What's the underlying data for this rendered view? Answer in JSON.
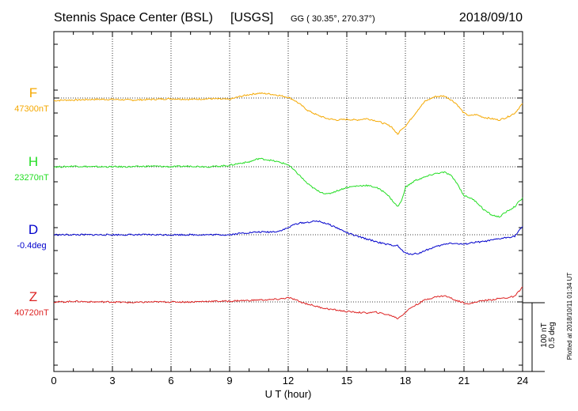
{
  "header": {
    "station": "Stennis Space Center (BSL)",
    "agency": "[USGS]",
    "coords": "GG ( 30.35°, 270.37°)",
    "date": "2018/09/10"
  },
  "footer": {
    "plotted": "Plotted at 2018/10/11 01:34 UT"
  },
  "scale_bar": {
    "label_nt": "100 nT",
    "label_deg": "0.5 deg"
  },
  "chart_data": {
    "type": "line",
    "title": "Stennis Space Center (BSL)  [USGS]",
    "xlabel": "U T (hour)",
    "xlim": [
      0,
      24
    ],
    "x_ticks": [
      0,
      3,
      6,
      9,
      12,
      15,
      18,
      21,
      24
    ],
    "x_tick_labels": [
      "0",
      "3",
      "6",
      "9",
      "12",
      "15",
      "18",
      "21",
      "24"
    ],
    "grid": true,
    "y_units_per_scale_bar": "100 nT / 0.5 deg",
    "series": [
      {
        "name": "F",
        "baseline_label": "47300nT",
        "color": "#f5a800",
        "x": [
          0,
          0.5,
          1,
          2,
          3,
          4,
          5,
          6,
          7,
          8,
          9,
          9.5,
          10,
          10.5,
          11,
          11.5,
          12,
          12.3,
          12.6,
          13,
          13.5,
          14,
          14.5,
          15,
          15.5,
          16,
          16.5,
          17,
          17.3,
          17.6,
          17.8,
          18,
          18.3,
          18.7,
          19,
          19.5,
          20,
          20.3,
          20.6,
          21,
          21.3,
          21.6,
          22,
          22.4,
          22.8,
          23.2,
          23.6,
          24
        ],
        "y": [
          -4,
          -3,
          -3,
          -2,
          -2,
          -3,
          -2,
          -1,
          -2,
          -1,
          -2,
          2,
          5,
          7,
          6,
          4,
          1,
          -3,
          -9,
          -18,
          -25,
          -30,
          -32,
          -31,
          -32,
          -30,
          -33,
          -38,
          -42,
          -53,
          -45,
          -41,
          -30,
          -15,
          -5,
          2,
          3,
          -2,
          -8,
          -22,
          -26,
          -24,
          -28,
          -30,
          -32,
          -28,
          -22,
          -8
        ]
      },
      {
        "name": "H",
        "baseline_label": "23270nT",
        "color": "#22dd22",
        "x": [
          0,
          0.5,
          1,
          2,
          3,
          4,
          5,
          6,
          7,
          8,
          9,
          9.5,
          10,
          10.5,
          11,
          11.5,
          12,
          12.3,
          12.6,
          13,
          13.5,
          14,
          14.5,
          15,
          15.5,
          16,
          16.5,
          17,
          17.3,
          17.6,
          17.8,
          18,
          18.5,
          19,
          19.5,
          20,
          20.3,
          20.6,
          21,
          21.3,
          21.6,
          22,
          22.4,
          22.8,
          23.2,
          23.6,
          24
        ],
        "y": [
          0,
          0,
          1,
          0,
          0,
          0,
          1,
          0,
          1,
          0,
          2,
          5,
          7,
          12,
          10,
          7,
          3,
          -5,
          -13,
          -25,
          -35,
          -40,
          -35,
          -30,
          -28,
          -27,
          -30,
          -38,
          -48,
          -58,
          -50,
          -30,
          -20,
          -15,
          -10,
          -8,
          -12,
          -22,
          -42,
          -45,
          -50,
          -62,
          -70,
          -73,
          -65,
          -58,
          -45
        ]
      },
      {
        "name": "D",
        "baseline_label": "-0.4deg",
        "color": "#0000cc",
        "x": [
          0,
          0.5,
          1,
          2,
          3,
          4,
          5,
          6,
          7,
          8,
          9,
          9.5,
          10,
          10.5,
          11,
          11.5,
          12,
          12.3,
          12.6,
          13,
          13.5,
          14,
          14.5,
          15,
          15.5,
          16,
          16.5,
          17,
          17.3,
          17.6,
          17.8,
          18,
          18.3,
          18.7,
          19,
          19.5,
          20,
          20.3,
          20.6,
          21,
          21.3,
          21.6,
          22,
          22.4,
          22.8,
          23.2,
          23.6,
          24
        ],
        "y": [
          0,
          0,
          0,
          0,
          0,
          0,
          0,
          0,
          0,
          0,
          0,
          2,
          3,
          4,
          4,
          5,
          10,
          15,
          17,
          18,
          20,
          16,
          10,
          3,
          -2,
          -6,
          -10,
          -14,
          -15,
          -16,
          -22,
          -27,
          -28,
          -27,
          -23,
          -18,
          -14,
          -12,
          -13,
          -14,
          -12,
          -11,
          -10,
          -8,
          -6,
          -4,
          -2,
          12
        ]
      },
      {
        "name": "Z",
        "baseline_label": "40720nT",
        "color": "#dd2222",
        "x": [
          0,
          0.5,
          1,
          2,
          3,
          4,
          5,
          6,
          7,
          8,
          9,
          9.5,
          10,
          10.5,
          11,
          11.5,
          12,
          12.3,
          12.6,
          13,
          13.5,
          14,
          14.5,
          15,
          15.5,
          16,
          16.5,
          17,
          17.3,
          17.6,
          17.8,
          18,
          18.3,
          18.7,
          19,
          19.5,
          20,
          20.3,
          20.6,
          21,
          21.3,
          21.6,
          22,
          22.4,
          22.8,
          23.2,
          23.6,
          24
        ],
        "y": [
          0,
          0,
          1,
          0,
          0,
          -1,
          0,
          0,
          0,
          1,
          1,
          2,
          2,
          3,
          3,
          4,
          6,
          4,
          0,
          -3,
          -7,
          -10,
          -12,
          -14,
          -15,
          -16,
          -15,
          -18,
          -20,
          -24,
          -20,
          -15,
          -8,
          -2,
          3,
          7,
          9,
          6,
          2,
          -1,
          -3,
          0,
          2,
          3,
          5,
          6,
          8,
          22
        ]
      }
    ]
  }
}
